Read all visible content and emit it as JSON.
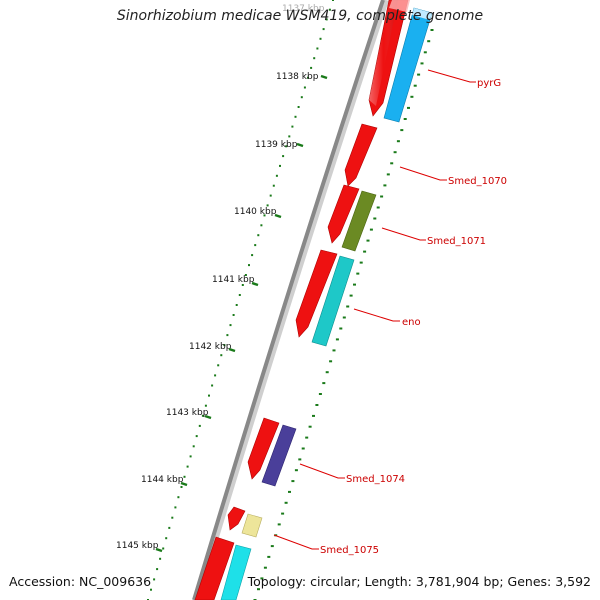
{
  "title": "Sinorhizobium medicae WSM419, complete genome",
  "footer": {
    "accession": "Accession: NC_009636",
    "summary": "Topology: circular; Length: 3,781,904 bp; Genes: 3,592"
  },
  "ticks": [
    {
      "label": "1137 kbp"
    },
    {
      "label": "1138 kbp"
    },
    {
      "label": "1139 kbp"
    },
    {
      "label": "1140 kbp"
    },
    {
      "label": "1141 kbp"
    },
    {
      "label": "1142 kbp"
    },
    {
      "label": "1143 kbp"
    },
    {
      "label": "1144 kbp"
    },
    {
      "label": "1145 kbp"
    }
  ],
  "genes": [
    {
      "label": "pyrG"
    },
    {
      "label": "Smed_1070"
    },
    {
      "label": "Smed_1071"
    },
    {
      "label": "eno"
    },
    {
      "label": "Smed_1074"
    },
    {
      "label": "Smed_1075"
    }
  ],
  "colors": {
    "cds": "#ee1111",
    "backbone": "#8a8a8a",
    "tick": "#1a7a1a",
    "label": "#cc0000",
    "pyrG": "#1ab0f0",
    "Smed_1071": "#6b8a23",
    "eno": "#1ec8c8",
    "Smed_1074": "#4a3f9a",
    "Smed_1075": "#ede59a",
    "next": "#1ee0e8"
  }
}
